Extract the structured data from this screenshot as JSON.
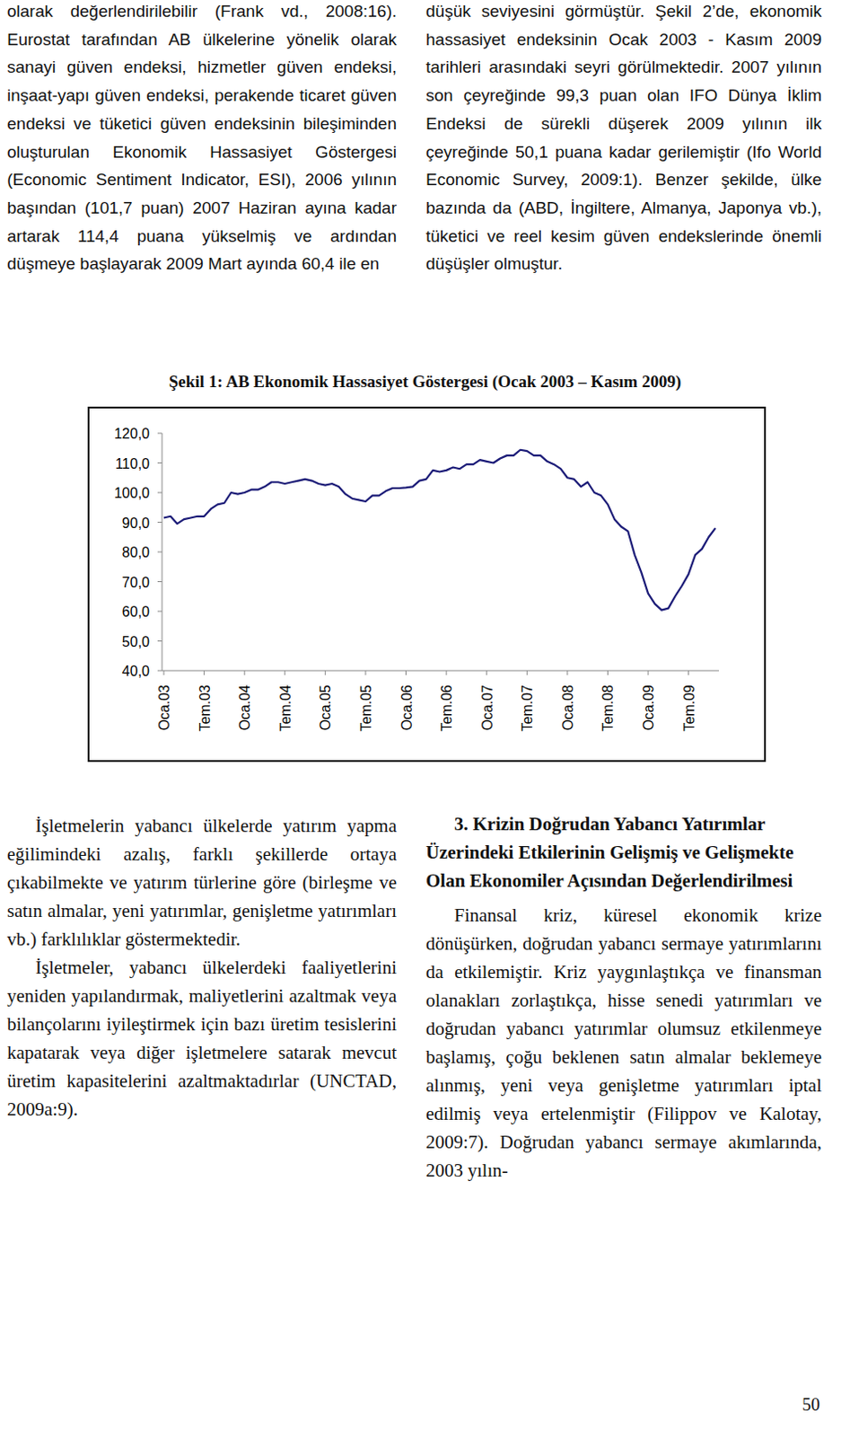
{
  "page": {
    "top_left": "olarak değerlendirilebilir (Frank vd., 2008:16). Eurostat tarafından AB ülkelerine yönelik olarak sanayi güven endeksi, hizmetler güven endeksi, inşaat-yapı güven endeksi, perakende ticaret güven endeksi ve tüketici güven endeksinin bileşiminden oluşturulan Ekonomik Hassasiyet Göstergesi (Economic Sentiment Indicator, ESI), 2006 yılının başından (101,7 puan) 2007 Haziran ayına kadar artarak 114,4 puana yükselmiş ve ardından düşmeye başlayarak 2009 Mart ayında 60,4 ile en",
    "top_right": "düşük seviyesini görmüştür. Şekil 2’de, ekonomik hassasiyet endeksinin Ocak 2003 - Kasım 2009 tarihleri arasındaki seyri görülmektedir. 2007 yılının son çeyreğinde 99,3 puan olan IFO Dünya İklim Endeksi de sürekli düşerek 2009 yılının ilk çeyreğinde 50,1 puana kadar gerilemiştir (Ifo World Economic Survey, 2009:1). Benzer şekilde, ülke bazında da (ABD, İngiltere, Almanya, Japonya vb.), tüketici ve reel kesim güven endekslerinde önemli düşüşler olmuştur.",
    "bottom_left": [
      "İşletmelerin yabancı ülkelerde yatırım yapma eğilimindeki azalış, farklı şekillerde ortaya çıkabilmekte ve yatırım türlerine göre (birleşme ve satın almalar, yeni yatırımlar, genişletme yatırımları vb.) farklılıklar göstermektedir.",
      "İşletmeler, yabancı ülkelerdeki faaliyetlerini yeniden yapılandırmak, maliyetlerini azaltmak veya bilançolarını iyileştirmek için bazı üretim tesislerini kapatarak veya diğer işletmelere satarak mevcut üretim kapasitelerini azaltmaktadırlar (UNCTAD, 2009a:9)."
    ],
    "bottom_right": {
      "heading": "3. Krizin Doğrudan Yabancı Yatırımlar Üzerindeki Etkilerinin Gelişmiş ve Gelişmekte Olan Ekonomiler Açısından Değerlendirilmesi",
      "paragraph": "Finansal kriz, küresel ekonomik krize dönüşürken, doğrudan yabancı sermaye yatırımlarını da etkilemiştir. Kriz yaygınlaştıkça ve finansman olanakları zorlaştıkça, hisse senedi yatırımları ve doğrudan yabancı yatırımlar olumsuz etkilenmeye başlamış, çoğu beklenen satın almalar beklemeye alınmış, yeni veya genişletme yatırımları iptal edilmiş veya ertelenmiştir (Filippov ve Kalotay, 2009:7). Doğrudan yabancı sermaye akımlarında, 2003 yılın-"
    },
    "page_number": "50"
  },
  "chart_data": {
    "type": "line",
    "title": "Şekil 1: AB Ekonomik Hassasiyet Göstergesi (Ocak 2003 – Kasım 2009)",
    "categories": [
      "Oca.03",
      null,
      null,
      null,
      null,
      null,
      "Tem.03",
      null,
      null,
      null,
      null,
      null,
      "Oca.04",
      null,
      null,
      null,
      null,
      null,
      "Tem.04",
      null,
      null,
      null,
      null,
      null,
      "Oca.05",
      null,
      null,
      null,
      null,
      null,
      "Tem.05",
      null,
      null,
      null,
      null,
      null,
      "Oca.06",
      null,
      null,
      null,
      null,
      null,
      "Tem.06",
      null,
      null,
      null,
      null,
      null,
      "Oca.07",
      null,
      null,
      null,
      null,
      null,
      "Tem.07",
      null,
      null,
      null,
      null,
      null,
      "Oca.08",
      null,
      null,
      null,
      null,
      null,
      "Tem.08",
      null,
      null,
      null,
      null,
      null,
      "Oca.09",
      null,
      null,
      null,
      null,
      null,
      "Tem.09",
      null,
      null,
      null,
      null
    ],
    "values": [
      91.5,
      92,
      89.5,
      91,
      91.5,
      92,
      92,
      94.5,
      96,
      96.5,
      100,
      99.5,
      100,
      101,
      101,
      102,
      103.5,
      103.5,
      103,
      103.5,
      104,
      104.5,
      104,
      103,
      102.5,
      103,
      102,
      99.5,
      98,
      97.5,
      97,
      99,
      99,
      100.5,
      101.5,
      101.5,
      101.7,
      102,
      104,
      104.5,
      107.5,
      107,
      107.5,
      108.5,
      108,
      109.5,
      109.5,
      111,
      110.5,
      110,
      111.5,
      112.5,
      112.5,
      114.4,
      114,
      112.5,
      112.5,
      110.5,
      109.5,
      108,
      105,
      104.5,
      102,
      103.5,
      100,
      99,
      96,
      91,
      88.5,
      87,
      79,
      73,
      66,
      62.5,
      60.4,
      61,
      65,
      68.5,
      72.5,
      79,
      81,
      85,
      88
    ],
    "color": "#1c1c78",
    "ylim": [
      40,
      120
    ],
    "yticks": [
      {
        "value": 40,
        "label": "40,0"
      },
      {
        "value": 50,
        "label": "50,0"
      },
      {
        "value": 60,
        "label": "60,0"
      },
      {
        "value": 70,
        "label": "70,0"
      },
      {
        "value": 80,
        "label": "80,0"
      },
      {
        "value": 90,
        "label": "90,0"
      },
      {
        "value": 100,
        "label": "100,0"
      },
      {
        "value": 110,
        "label": "110,0"
      },
      {
        "value": 120,
        "label": "120,0"
      }
    ],
    "grid": false
  }
}
